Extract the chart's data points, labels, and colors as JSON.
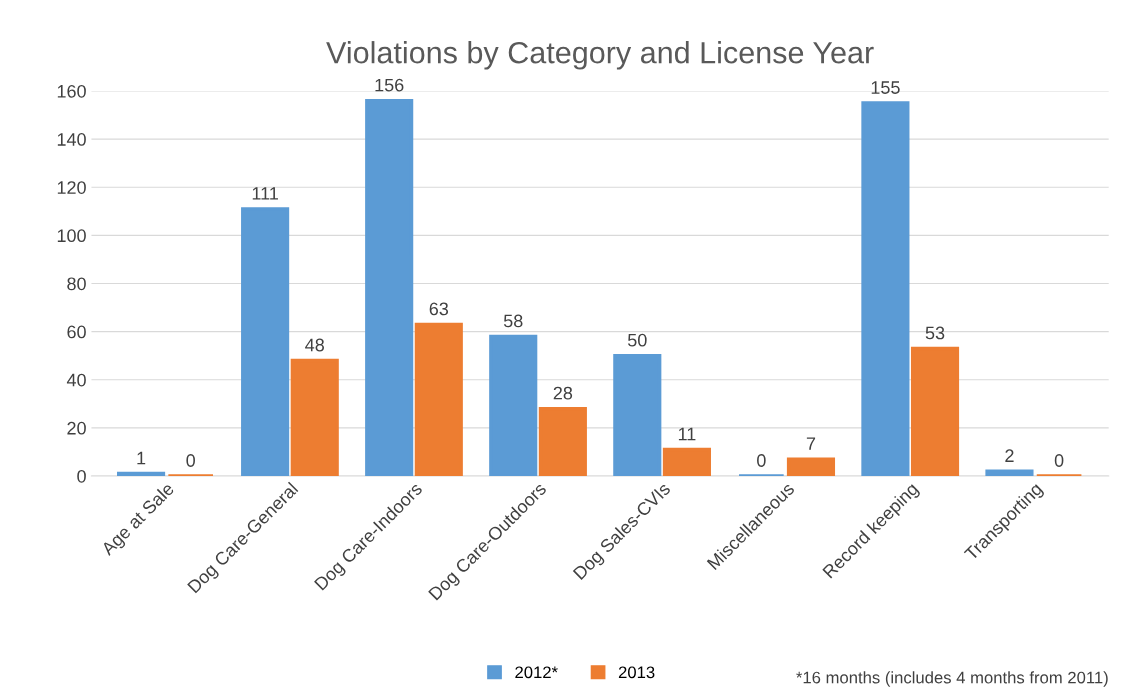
{
  "chart_data": {
    "type": "bar",
    "title": "Violations by Category and License Year",
    "categories": [
      "Age at Sale",
      "Dog Care-General",
      "Dog Care-Indoors",
      "Dog Care-Outdoors",
      "Dog Sales-CVIs",
      "Miscellaneous",
      "Record keeping",
      "Transporting"
    ],
    "series": [
      {
        "name": "2012*",
        "color": "#5b9bd5",
        "values": [
          1,
          111,
          156,
          58,
          50,
          0,
          155,
          2
        ]
      },
      {
        "name": "2013",
        "color": "#ed7d31",
        "values": [
          0,
          48,
          63,
          28,
          11,
          7,
          53,
          0
        ]
      }
    ],
    "ylim": [
      0,
      160
    ],
    "yticks": [
      0,
      20,
      40,
      60,
      80,
      100,
      120,
      140,
      160
    ],
    "grid": "y",
    "legend": "bottom",
    "data_labels": true,
    "annotations": [
      "*16 months (includes 4 months from 2011)"
    ]
  }
}
